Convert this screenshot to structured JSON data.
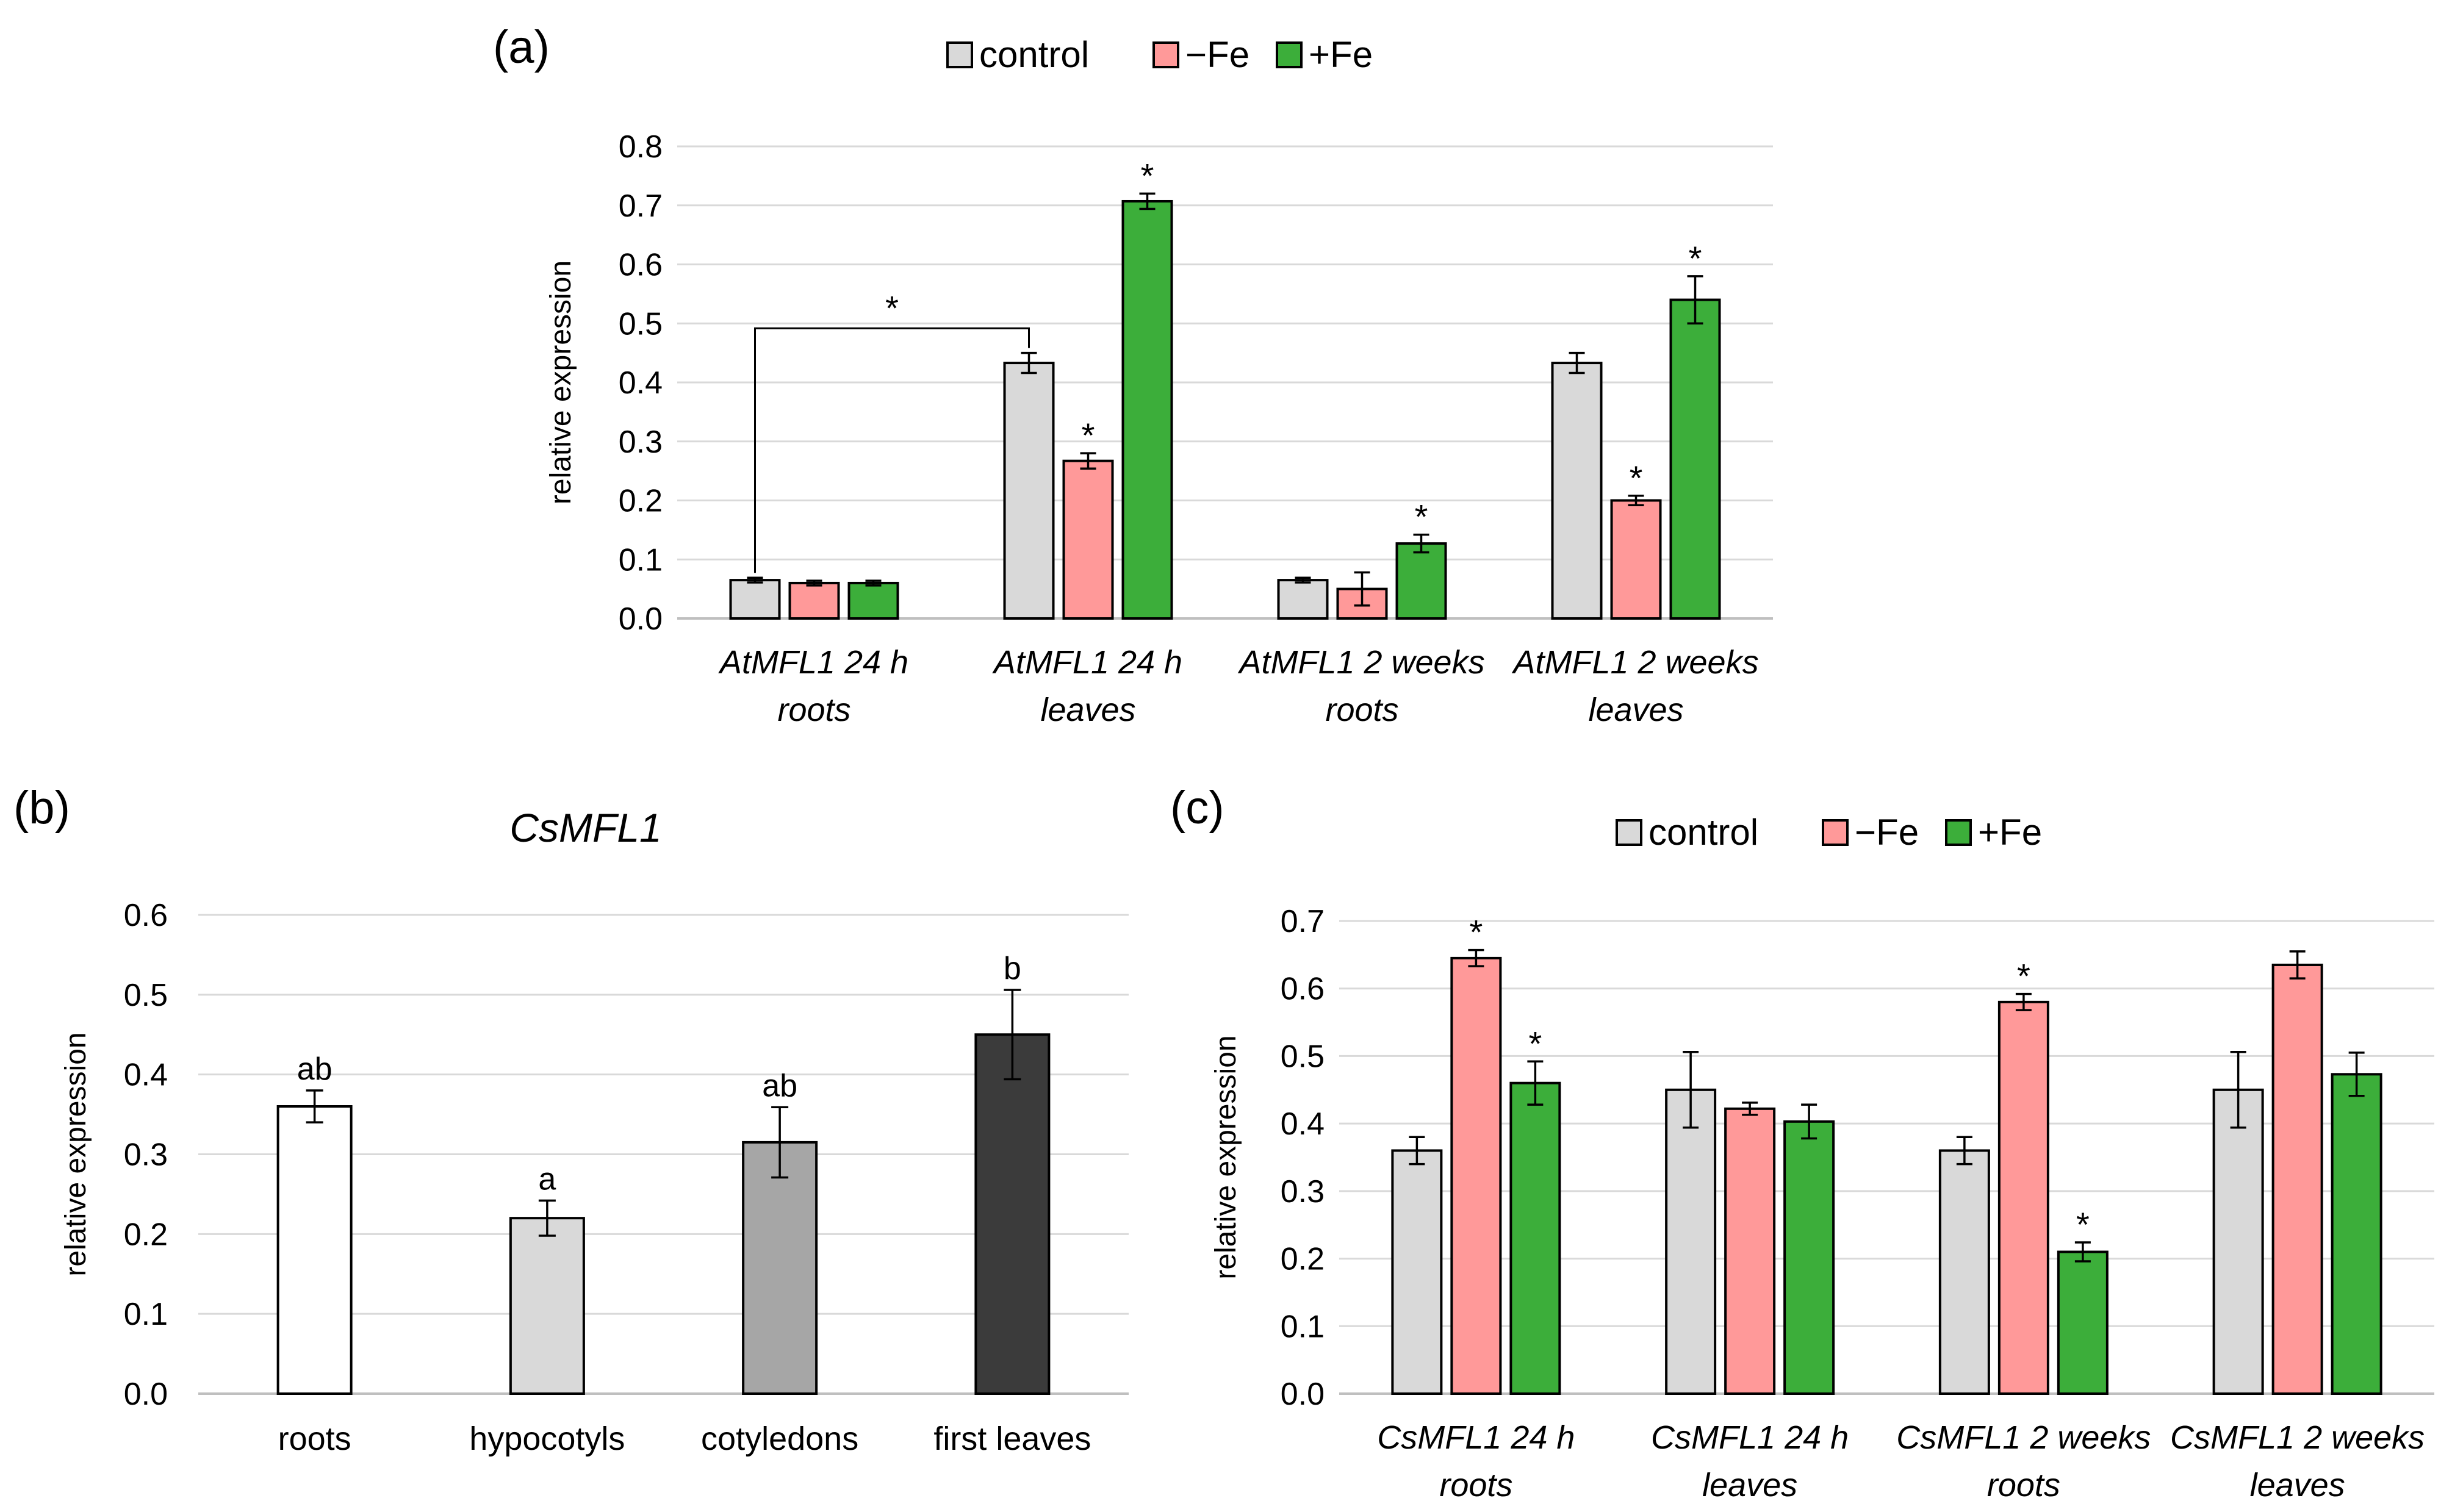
{
  "colors": {
    "control": "#d9d9d9",
    "minus_fe": "#ff9999",
    "plus_fe": "#3cae3a",
    "grid": "#d9d9d9",
    "axis": "#bfbfbf",
    "roots": "#ffffff",
    "hypocotyls": "#d9d9d9",
    "cotyledons": "#a6a6a6",
    "first_leaves": "#3b3b3b"
  },
  "chart_data": [
    {
      "panel": "(a)",
      "type": "bar",
      "ylabel": "relative expression",
      "ylim": [
        0,
        0.8
      ],
      "yticks": [
        "0.0",
        "0.1",
        "0.2",
        "0.3",
        "0.4",
        "0.5",
        "0.6",
        "0.7",
        "0.8"
      ],
      "legend": [
        "control",
        "−Fe",
        "+Fe"
      ],
      "categories": [
        [
          "AtMFL1 24 h",
          "roots"
        ],
        [
          "AtMFL1 24 h",
          "leaves"
        ],
        [
          "AtMFL1 2 weeks",
          "roots"
        ],
        [
          "AtMFL1 2 weeks",
          "leaves"
        ]
      ],
      "series": [
        {
          "name": "control",
          "values": [
            0.065,
            0.433,
            0.065,
            0.433
          ],
          "errors": [
            0.004,
            0.017,
            0.004,
            0.017
          ],
          "marks": [
            "",
            "",
            "",
            ""
          ]
        },
        {
          "name": "−Fe",
          "values": [
            0.06,
            0.267,
            0.05,
            0.2
          ],
          "errors": [
            0.004,
            0.013,
            0.028,
            0.008
          ],
          "marks": [
            "",
            "*",
            "",
            "*"
          ]
        },
        {
          "name": "+Fe",
          "values": [
            0.06,
            0.707,
            0.127,
            0.54
          ],
          "errors": [
            0.004,
            0.013,
            0.015,
            0.04
          ],
          "marks": [
            "",
            "*",
            "*",
            "*"
          ]
        }
      ],
      "bracket": {
        "from_category": 0,
        "to_category": 1,
        "series": 0,
        "y": 0.5,
        "label": "*"
      }
    },
    {
      "panel": "(b)",
      "type": "bar",
      "title": "CsMFL1",
      "ylabel": "relative expression",
      "ylim": [
        0,
        0.6
      ],
      "yticks": [
        "0.0",
        "0.1",
        "0.2",
        "0.3",
        "0.4",
        "0.5",
        "0.6"
      ],
      "categories": [
        "roots",
        "hypocotyls",
        "cotyledons",
        "first leaves"
      ],
      "values": [
        0.36,
        0.22,
        0.315,
        0.45
      ],
      "errors": [
        0.02,
        0.022,
        0.044,
        0.056
      ],
      "letters": [
        "ab",
        "a",
        "ab",
        "b"
      ]
    },
    {
      "panel": "(c)",
      "type": "bar",
      "ylabel": "relative expression",
      "ylim": [
        0,
        0.7
      ],
      "yticks": [
        "0.0",
        "0.1",
        "0.2",
        "0.3",
        "0.4",
        "0.5",
        "0.6",
        "0.7"
      ],
      "legend": [
        "control",
        "−Fe",
        "+Fe"
      ],
      "categories": [
        [
          "CsMFL1 24 h",
          "roots"
        ],
        [
          "CsMFL1 24 h",
          "leaves"
        ],
        [
          "CsMFL1 2 weeks",
          "roots"
        ],
        [
          "CsMFL1 2 weeks",
          "leaves"
        ]
      ],
      "series": [
        {
          "name": "control",
          "values": [
            0.36,
            0.45,
            0.36,
            0.45
          ],
          "errors": [
            0.02,
            0.056,
            0.02,
            0.056
          ],
          "marks": [
            "",
            "",
            "",
            ""
          ]
        },
        {
          "name": "−Fe",
          "values": [
            0.645,
            0.422,
            0.58,
            0.635
          ],
          "errors": [
            0.012,
            0.009,
            0.012,
            0.02
          ],
          "marks": [
            "*",
            "",
            "*",
            ""
          ]
        },
        {
          "name": "+Fe",
          "values": [
            0.46,
            0.403,
            0.21,
            0.473
          ],
          "errors": [
            0.032,
            0.025,
            0.014,
            0.032
          ],
          "marks": [
            "*",
            "",
            "*",
            ""
          ]
        }
      ]
    }
  ]
}
